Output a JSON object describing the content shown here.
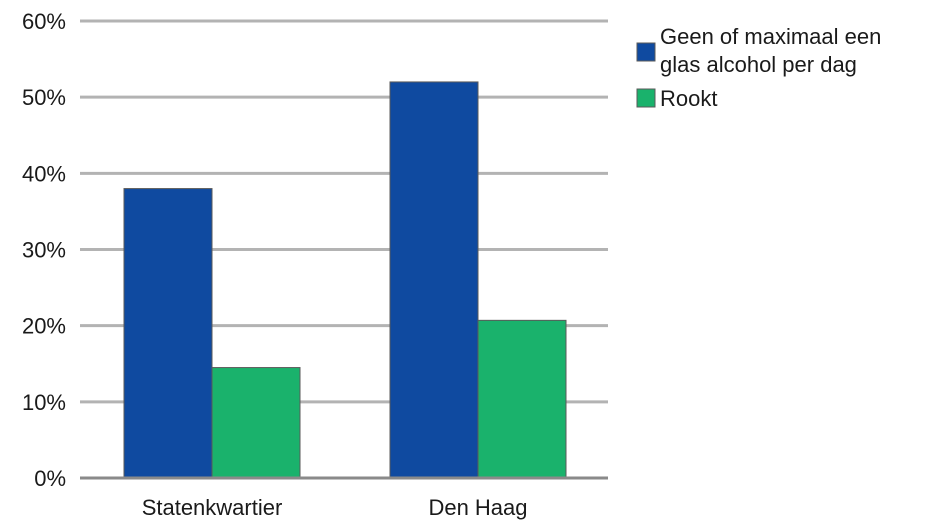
{
  "chart_data": {
    "type": "bar",
    "categories": [
      "Statenkwartier",
      "Den Haag"
    ],
    "series": [
      {
        "name": "Geen of maximaal een glas alcohol per dag",
        "values": [
          38,
          52
        ],
        "color": "#0f4aa0"
      },
      {
        "name": "Rookt",
        "values": [
          14.5,
          20.7
        ],
        "color": "#1ab26c"
      }
    ],
    "ylim": [
      0,
      60
    ],
    "yticks": [
      0,
      10,
      20,
      30,
      40,
      50,
      60
    ],
    "ytick_labels": [
      "0%",
      "10%",
      "20%",
      "30%",
      "40%",
      "50%",
      "60%"
    ],
    "grid": true,
    "legend_position": "top-right"
  },
  "legend": {
    "items": [
      {
        "lines": [
          "Geen of maximaal een",
          "glas alcohol per dag"
        ],
        "color": "#0f4aa0"
      },
      {
        "lines": [
          "Rookt"
        ],
        "color": "#1ab26c"
      }
    ]
  }
}
